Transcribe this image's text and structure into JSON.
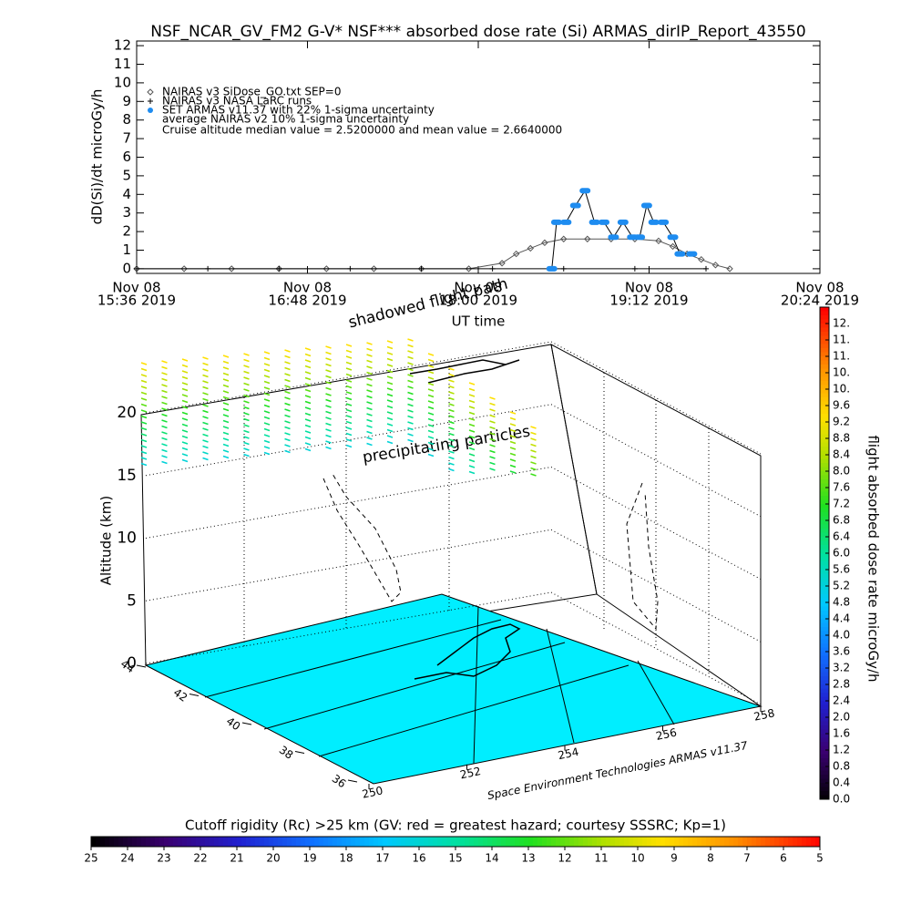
{
  "chart_data": [
    {
      "type": "line",
      "title": "NSF_NCAR_GV_FM2 G-V* NSF*** absorbed dose rate (Si) ARMAS_dirIP_Report_43550",
      "y_label": "dD(Si)/dt microGy/h",
      "x_label": "UT time",
      "xlim": [
        "2019-11-08 15:36",
        "2019-11-08 20:24"
      ],
      "xticks": [
        {
          "value": "2019-11-08 15:36",
          "label": [
            "Nov 08",
            "15:36 2019"
          ]
        },
        {
          "value": "2019-11-08 16:48",
          "label": [
            "Nov 08",
            "16:48 2019"
          ]
        },
        {
          "value": "2019-11-08 18:00",
          "label": [
            "Nov 08",
            "18:00 2019"
          ]
        },
        {
          "value": "2019-11-08 19:12",
          "label": [
            "Nov 08",
            "19:12 2019"
          ]
        },
        {
          "value": "2019-11-08 20:24",
          "label": [
            "Nov 08",
            "20:24 2019"
          ]
        }
      ],
      "ylim": [
        -0.25,
        12.25
      ],
      "yticks": [
        0,
        1,
        2,
        3,
        4,
        5,
        6,
        7,
        8,
        9,
        10,
        11,
        12
      ],
      "series": [
        {
          "name": "NAIRAS v3 SiDose_GO.txt SEP=0",
          "color": "#555555",
          "marker": "diamond",
          "x": [
            "2019-11-08 15:36",
            "2019-11-08 15:56",
            "2019-11-08 16:16",
            "2019-11-08 16:36",
            "2019-11-08 16:56",
            "2019-11-08 17:16",
            "2019-11-08 17:36",
            "2019-11-08 17:56",
            "2019-11-08 18:10",
            "2019-11-08 18:16",
            "2019-11-08 18:22",
            "2019-11-08 18:28",
            "2019-11-08 18:36",
            "2019-11-08 18:46",
            "2019-11-08 18:56",
            "2019-11-08 19:06",
            "2019-11-08 19:16",
            "2019-11-08 19:22",
            "2019-11-08 19:28",
            "2019-11-08 19:34",
            "2019-11-08 19:40",
            "2019-11-08 19:46"
          ],
          "values": [
            0,
            0,
            0,
            0,
            0,
            0,
            0,
            0,
            0.3,
            0.8,
            1.1,
            1.4,
            1.6,
            1.6,
            1.6,
            1.6,
            1.5,
            1.2,
            0.8,
            0.5,
            0.2,
            0
          ]
        },
        {
          "name": "NAIRAS v3 NASA LaRC runs",
          "color": "#000000",
          "marker": "cross",
          "x": [
            "2019-11-08 15:36",
            "2019-11-08 16:06",
            "2019-11-08 16:36",
            "2019-11-08 17:06",
            "2019-11-08 17:36",
            "2019-11-08 18:06",
            "2019-11-08 18:36",
            "2019-11-08 19:06",
            "2019-11-08 19:36"
          ],
          "values": [
            0,
            0,
            0,
            0,
            0,
            0,
            0,
            0,
            0
          ]
        },
        {
          "name": "SET ARMAS v11.37 with 22% 1-sigma uncertainty",
          "color": "#1e8cf0",
          "marker": "dot",
          "x": [
            "2019-11-08 18:31",
            "2019-11-08 18:33",
            "2019-11-08 18:37",
            "2019-11-08 18:41",
            "2019-11-08 18:45",
            "2019-11-08 18:49",
            "2019-11-08 18:53",
            "2019-11-08 18:57",
            "2019-11-08 19:01",
            "2019-11-08 19:05",
            "2019-11-08 19:08",
            "2019-11-08 19:11",
            "2019-11-08 19:14",
            "2019-11-08 19:18",
            "2019-11-08 19:22",
            "2019-11-08 19:25",
            "2019-11-08 19:30"
          ],
          "values": [
            0,
            2.5,
            2.5,
            3.4,
            4.2,
            2.5,
            2.5,
            1.7,
            2.5,
            1.7,
            1.7,
            3.4,
            2.5,
            2.5,
            1.7,
            0.8,
            0.8
          ]
        }
      ],
      "annotations": [
        "average NAIRAS v2 10% 1-sigma uncertainty",
        "Cruise altitude median value = 2.5200000 and mean value = 2.6640000"
      ]
    },
    {
      "type": "scatter3d",
      "z_label": "Altitude (km)",
      "zticks": [
        0,
        5,
        10,
        15,
        20
      ],
      "yticks": [
        44,
        42,
        40,
        38,
        36
      ],
      "xticks": [
        250,
        252,
        254,
        256,
        258
      ],
      "annotations": [
        "shadowed flight path",
        "precipitating particles",
        "Space Environment Technologies ARMAS v11.37"
      ]
    },
    {
      "type": "colorbar",
      "label": "flight absorbed dose rate microGy/h",
      "clim": [
        0,
        12
      ],
      "ticks": [
        {
          "value": 0,
          "label": "0.0"
        },
        0.4,
        0.8,
        1.2,
        1.6,
        {
          "value": 2,
          "label": "2.0"
        },
        2.4,
        2.8,
        3.2,
        3.6,
        {
          "value": 4,
          "label": "4.0"
        },
        4.4,
        4.8,
        5.2,
        5.6,
        {
          "value": 6,
          "label": "6.0"
        },
        6.4,
        6.8,
        7.2,
        7.6,
        {
          "value": 8,
          "label": "8.0"
        },
        8.4,
        8.8,
        9.2,
        9.6,
        {
          "value": 10,
          "label": "10."
        },
        {
          "value": 10.4,
          "label": "10."
        },
        {
          "value": 10.8,
          "label": "11."
        },
        {
          "value": 11.2,
          "label": "11."
        },
        {
          "value": 11.6,
          "label": "12."
        }
      ]
    },
    {
      "type": "colorbar",
      "label": "Cutoff rigidity (Rc) >25 km (GV: red = greatest hazard; courtesy SSSRC; Kp=1)",
      "clim": [
        25,
        5
      ],
      "ticks": [
        25,
        24,
        23,
        22,
        21,
        20,
        19,
        18,
        17,
        16,
        15,
        14,
        13,
        12,
        11,
        10,
        9,
        8,
        7,
        6,
        5
      ]
    }
  ]
}
